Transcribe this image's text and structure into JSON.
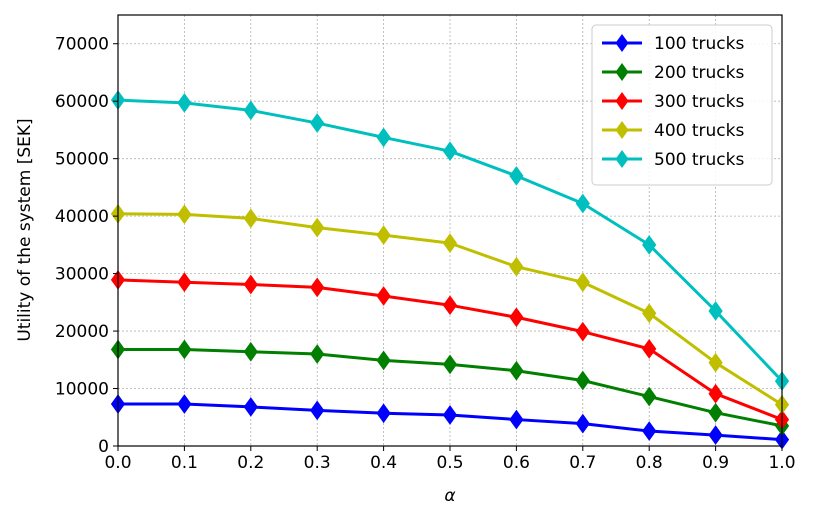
{
  "chart_data": {
    "type": "line",
    "xlabel": "α",
    "ylabel": "Utility of the system [SEK]",
    "xlim": [
      0.0,
      1.0
    ],
    "ylim": [
      0,
      75000
    ],
    "x": [
      0.0,
      0.1,
      0.2,
      0.3,
      0.4,
      0.5,
      0.6,
      0.7,
      0.8,
      0.9,
      1.0
    ],
    "xticks": [
      "0.0",
      "0.1",
      "0.2",
      "0.3",
      "0.4",
      "0.5",
      "0.6",
      "0.7",
      "0.8",
      "0.9",
      "1.0"
    ],
    "yticks": [
      "0",
      "10000",
      "20000",
      "30000",
      "40000",
      "50000",
      "60000",
      "70000"
    ],
    "grid": true,
    "legend_position": "top-right",
    "marker": "diamond",
    "series": [
      {
        "name": "100 trucks",
        "color": "#0000ff",
        "values": [
          7300,
          7300,
          6800,
          6200,
          5700,
          5400,
          4600,
          3900,
          2600,
          1900,
          1100
        ]
      },
      {
        "name": "200 trucks",
        "color": "#007f00",
        "values": [
          16800,
          16800,
          16400,
          16000,
          14900,
          14200,
          13100,
          11400,
          8600,
          5800,
          3500
        ]
      },
      {
        "name": "300 trucks",
        "color": "#ff0000",
        "values": [
          28900,
          28500,
          28100,
          27600,
          26100,
          24500,
          22400,
          19900,
          16900,
          9100,
          4600
        ]
      },
      {
        "name": "400 trucks",
        "color": "#bfbf00",
        "values": [
          40400,
          40300,
          39600,
          38000,
          36700,
          35300,
          31200,
          28500,
          23100,
          14500,
          7200
        ]
      },
      {
        "name": "500 trucks",
        "color": "#00bfbf",
        "values": [
          60200,
          59700,
          58400,
          56200,
          53700,
          51300,
          47000,
          42200,
          35000,
          23500,
          11300
        ]
      }
    ]
  }
}
